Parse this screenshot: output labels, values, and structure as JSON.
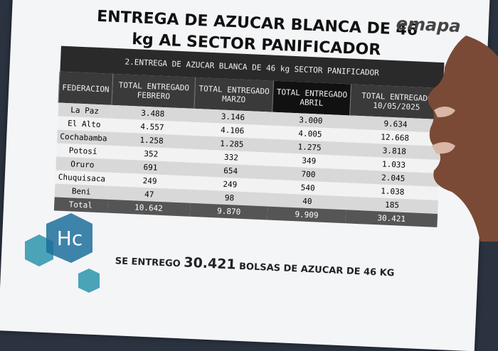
{
  "header": {
    "title": "ENTREGA DE AZUCAR BLANCA DE 46 kg AL SECTOR PANIFICADOR",
    "logo": "emapa"
  },
  "table": {
    "caption": "2.ENTREGA DE AZUCAR BLANCA DE 46 kg SECTOR PANIFICADOR",
    "columns": [
      "FEDERACION",
      "TOTAL ENTREGADO FEBRERO",
      "TOTAL ENTREGADO MARZO",
      "TOTAL ENTREGADO ABRIL",
      "TOTAL ENTREGADO 10/05/2025"
    ],
    "rows": [
      [
        "La Paz",
        "3.488",
        "3.146",
        "3.000",
        "9.634"
      ],
      [
        "El Alto",
        "4.557",
        "4.106",
        "4.005",
        "12.668"
      ],
      [
        "Cochabamba",
        "1.258",
        "1.285",
        "1.275",
        "3.818"
      ],
      [
        "Potosí",
        "352",
        "332",
        "349",
        "1.033"
      ],
      [
        "Oruro",
        "691",
        "654",
        "700",
        "2.045"
      ],
      [
        "Chuquisaca",
        "249",
        "249",
        "540",
        "1.038"
      ],
      [
        "Beni",
        "47",
        "98",
        "40",
        "185"
      ],
      [
        "Total",
        "10.642",
        "9.870",
        "9.909",
        "30.421"
      ]
    ]
  },
  "footer": {
    "prefix": "SE ENTREGO",
    "amount": "30.421",
    "suffix": "BOLSAS DE AZUCAR DE 46 KG"
  },
  "overlay": {
    "logo": "Hc"
  }
}
